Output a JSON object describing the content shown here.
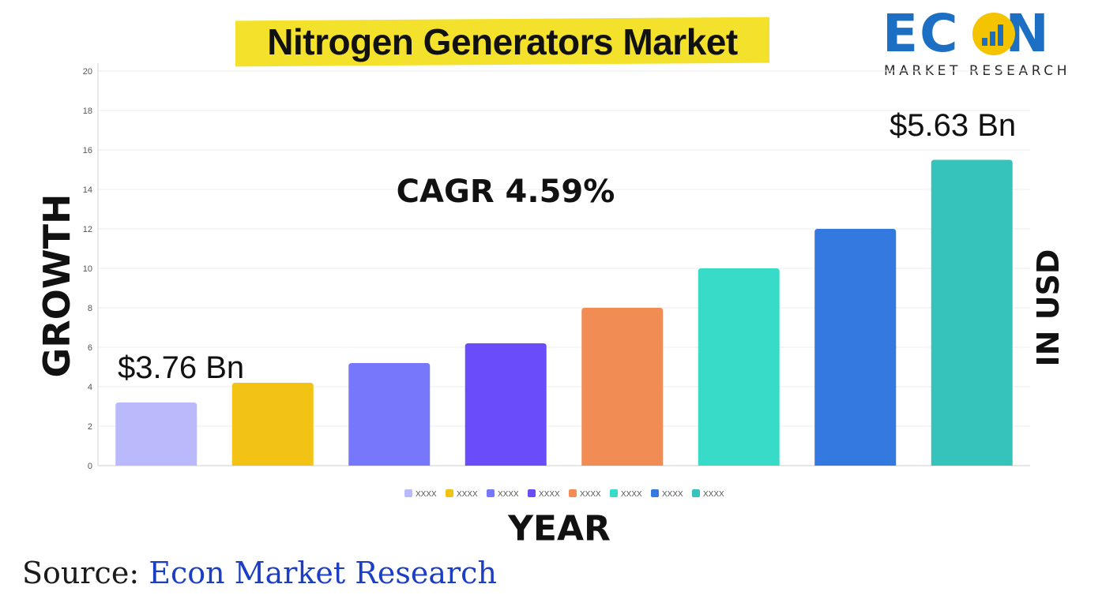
{
  "title": "Nitrogen Generators Market",
  "logo": {
    "word": "ECON",
    "subtitle": "MARKET RESEARCH",
    "brand_blue": "#1d6fc4",
    "brand_yellow": "#f4c400"
  },
  "cagr_label": "CAGR 4.59%",
  "annotations": {
    "start_value": "$3.76 Bn",
    "end_value": "$5.63 Bn"
  },
  "axis_text": {
    "y_left": "GROWTH",
    "y_right": "IN USD",
    "x": "YEAR"
  },
  "source": {
    "prefix": "Source:",
    "name": "Econ Market Research"
  },
  "chart_data": {
    "type": "bar",
    "title": "Nitrogen Generators Market",
    "xlabel": "YEAR",
    "ylabel": "GROWTH",
    "ylabel_secondary": "IN USD",
    "ylim": [
      0,
      20
    ],
    "yticks": [
      0,
      2,
      4,
      6,
      8,
      10,
      12,
      14,
      16,
      18,
      20
    ],
    "grid": true,
    "legend_position": "bottom",
    "categories": [
      "XXXX",
      "XXXX",
      "XXXX",
      "XXXX",
      "XXXX",
      "XXXX",
      "XXXX",
      "XXXX"
    ],
    "values": [
      3.2,
      4.2,
      5.2,
      6.2,
      8.0,
      10.0,
      12.0,
      15.5
    ],
    "colors": [
      "#b9b9fb",
      "#f2c214",
      "#7777fb",
      "#6a4cfb",
      "#f28c55",
      "#38dac8",
      "#3379e0",
      "#36c3bb"
    ]
  }
}
